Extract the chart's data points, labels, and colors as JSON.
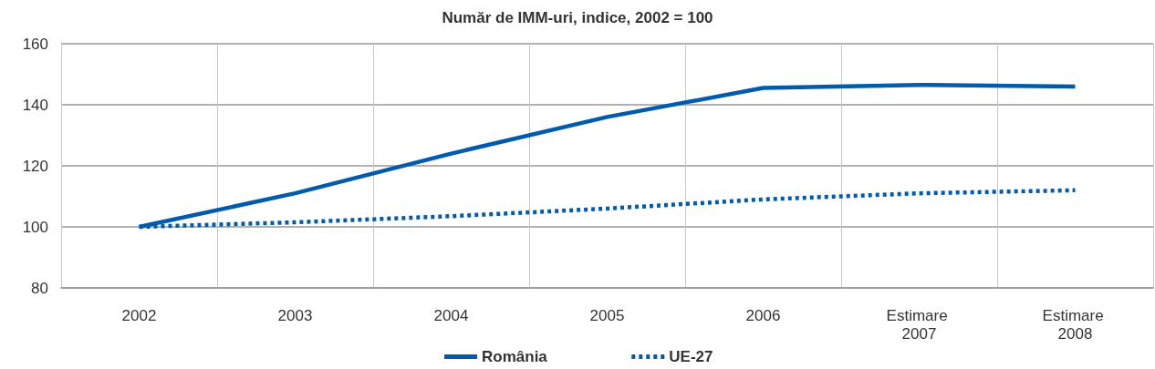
{
  "chart_data": {
    "type": "line",
    "title": "Număr de IMM-uri, indice, 2002 = 100",
    "categories": [
      "2002",
      "2003",
      "2004",
      "2005",
      "2006",
      "Estimare 2007",
      "Estimare 2008"
    ],
    "series": [
      {
        "name": "România",
        "color": "#005bac",
        "line_style": "solid",
        "values": [
          100,
          111,
          124,
          136,
          145.5,
          146.5,
          146
        ]
      },
      {
        "name": "UE-27",
        "color": "#005bac",
        "line_style": "dotted",
        "values": [
          100,
          101.5,
          103.5,
          106,
          109,
          111,
          112
        ]
      }
    ],
    "ylim": [
      80,
      160
    ],
    "yticks": [
      80,
      100,
      120,
      140,
      160
    ],
    "grid": true,
    "legend": "bottom",
    "marker": "none"
  }
}
